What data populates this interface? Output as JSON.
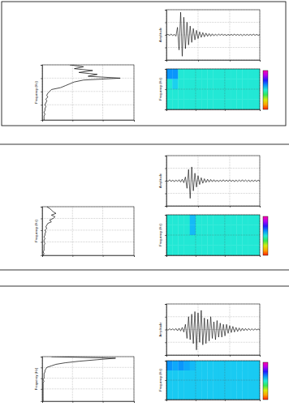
{
  "chart_data": [
    {
      "type": "line",
      "orientation": "horizontal",
      "xlabel": "Frequency (Hz)",
      "color": "#000000",
      "x": [
        0,
        1,
        2,
        3,
        4,
        5,
        6,
        7,
        8,
        9,
        10,
        11,
        12,
        13,
        14,
        15,
        16,
        17,
        18,
        19,
        20,
        21,
        22,
        23,
        24,
        25,
        26,
        27,
        28,
        29
      ],
      "values": [
        0.3,
        0.45,
        0.35,
        0.55,
        0.4,
        0.6,
        0.5,
        0.85,
        0.45,
        0.35,
        0.3,
        0.25,
        0.2,
        0.1,
        0.08,
        0.06,
        0.05,
        0.06,
        0.04,
        0.05,
        0.04,
        0.03,
        0.04,
        0.03,
        0.03,
        0.02,
        0.03,
        0.02,
        0.02,
        0.02
      ],
      "xlim": [
        0,
        29
      ],
      "xticks": [
        0,
        7,
        14,
        21
      ],
      "ylim": [
        0,
        1
      ],
      "yticks": [
        0,
        0.33,
        0.66,
        1
      ],
      "grid": true,
      "tick_labels": false
    },
    {
      "type": "line",
      "ylabel": "Amplitude",
      "color": "#000000",
      "values": [
        0.0,
        0.02,
        -0.02,
        0.03,
        -0.03,
        0.02,
        -0.05,
        0.3,
        -0.6,
        0.9,
        -0.85,
        0.7,
        -0.55,
        0.5,
        -0.4,
        0.35,
        -0.3,
        0.25,
        -0.2,
        0.18,
        -0.15,
        0.12,
        -0.1,
        0.09,
        -0.08,
        0.07,
        -0.06,
        0.05,
        -0.05,
        0.04,
        -0.04,
        0.03,
        -0.03,
        0.03,
        -0.02,
        0.03,
        -0.02,
        0.02,
        -0.03,
        0.02,
        -0.02,
        0.02,
        -0.02,
        0.03,
        -0.02,
        0.02,
        -0.02,
        0.02,
        -0.03,
        0.02,
        -0.02,
        0.02,
        -0.02,
        0.02,
        -0.02,
        0.03,
        -0.02,
        0.02,
        -0.02,
        0.01
      ],
      "xlim": [
        0,
        59
      ],
      "xticks": [
        0,
        20,
        40,
        59
      ],
      "ylim": [
        -1,
        1
      ],
      "yticks": [
        -1,
        -0.5,
        0,
        0.5,
        1
      ],
      "grid": true,
      "tick_labels": false
    },
    {
      "type": "heatmap",
      "ylabel": "Frequency (Hz)",
      "cells": [
        [
          0.62,
          0.62,
          0.5,
          0.5,
          0.5,
          0.5,
          0.5,
          0.5,
          0.5,
          0.5,
          0.5,
          0.5,
          0.5,
          0.5,
          0.5,
          0.5
        ],
        [
          0.5,
          0.55,
          0.5,
          0.5,
          0.5,
          0.5,
          0.5,
          0.5,
          0.5,
          0.5,
          0.5,
          0.5,
          0.5,
          0.5,
          0.5,
          0.5
        ],
        [
          0.5,
          0.5,
          0.5,
          0.5,
          0.5,
          0.5,
          0.5,
          0.5,
          0.5,
          0.5,
          0.5,
          0.5,
          0.5,
          0.5,
          0.5,
          0.5
        ],
        [
          0.5,
          0.5,
          0.5,
          0.5,
          0.5,
          0.5,
          0.5,
          0.5,
          0.5,
          0.5,
          0.5,
          0.5,
          0.5,
          0.5,
          0.5,
          0.5
        ]
      ],
      "zlim": [
        0,
        1
      ],
      "xlim": [
        0,
        16
      ],
      "xticks": [
        0,
        5,
        10,
        16
      ],
      "ylim": [
        0,
        4
      ],
      "yticks": [
        0,
        2,
        4
      ],
      "grid": true,
      "tick_labels": false
    },
    {
      "type": "line",
      "orientation": "horizontal",
      "xlabel": "Frequency (Hz)",
      "color": "#000000",
      "x": [
        0,
        1,
        2,
        3,
        4,
        5,
        6,
        7,
        8,
        9,
        10,
        11,
        12,
        13,
        14,
        15,
        16,
        17,
        18,
        19,
        20,
        21,
        22,
        23,
        24,
        25,
        26,
        27,
        28,
        29
      ],
      "values": [
        0.05,
        0.08,
        0.1,
        0.12,
        0.15,
        0.1,
        0.14,
        0.12,
        0.08,
        0.1,
        0.06,
        0.05,
        0.04,
        0.05,
        0.03,
        0.04,
        0.03,
        0.03,
        0.02,
        0.03,
        0.02,
        0.02,
        0.03,
        0.02,
        0.02,
        0.02,
        0.02,
        0.01,
        0.02,
        0.01
      ],
      "xlim": [
        0,
        29
      ],
      "xticks": [
        0,
        7,
        14,
        21
      ],
      "ylim": [
        0,
        1
      ],
      "yticks": [
        0,
        0.33,
        0.66,
        1
      ],
      "grid": true,
      "tick_labels": false
    },
    {
      "type": "line",
      "ylabel": "Amplitude",
      "color": "#000000",
      "values": [
        0.02,
        -0.03,
        0.04,
        -0.03,
        0.03,
        -0.04,
        0.03,
        -0.03,
        0.04,
        -0.05,
        0.06,
        -0.08,
        0.15,
        -0.3,
        0.45,
        -0.7,
        0.55,
        -0.4,
        0.3,
        -0.25,
        0.2,
        -0.15,
        0.12,
        -0.1,
        0.08,
        -0.07,
        0.06,
        -0.05,
        0.05,
        -0.04,
        0.04,
        -0.04,
        0.03,
        -0.04,
        0.03,
        -0.03,
        0.04,
        -0.03,
        0.03,
        -0.03,
        0.04,
        -0.03,
        0.03,
        -0.04,
        0.03,
        -0.03,
        0.03,
        -0.03,
        0.04,
        -0.03,
        0.03,
        -0.03,
        0.03,
        -0.04,
        0.03,
        -0.03,
        0.03,
        -0.03,
        0.03,
        -0.02
      ],
      "xlim": [
        0,
        59
      ],
      "xticks": [
        0,
        20,
        40,
        59
      ],
      "ylim": [
        -1,
        1
      ],
      "yticks": [
        -1,
        -0.5,
        0,
        0.5,
        1
      ],
      "grid": true,
      "tick_labels": false
    },
    {
      "type": "heatmap",
      "ylabel": "Frequency (Hz)",
      "cells": [
        [
          0.5,
          0.5,
          0.5,
          0.5,
          0.58,
          0.5,
          0.5,
          0.5,
          0.5,
          0.5,
          0.5,
          0.5,
          0.5,
          0.5,
          0.5,
          0.5
        ],
        [
          0.5,
          0.5,
          0.5,
          0.5,
          0.58,
          0.5,
          0.5,
          0.5,
          0.5,
          0.5,
          0.5,
          0.5,
          0.5,
          0.5,
          0.5,
          0.5
        ],
        [
          0.5,
          0.5,
          0.5,
          0.5,
          0.5,
          0.5,
          0.5,
          0.5,
          0.5,
          0.5,
          0.5,
          0.5,
          0.5,
          0.5,
          0.5,
          0.5
        ],
        [
          0.5,
          0.5,
          0.5,
          0.5,
          0.5,
          0.5,
          0.5,
          0.5,
          0.5,
          0.5,
          0.5,
          0.5,
          0.5,
          0.5,
          0.5,
          0.5
        ]
      ],
      "zlim": [
        0,
        1
      ],
      "xlim": [
        0,
        16
      ],
      "xticks": [
        0,
        5,
        10,
        16
      ],
      "ylim": [
        0,
        4
      ],
      "yticks": [
        0,
        2,
        4
      ],
      "grid": true,
      "tick_labels": false
    },
    {
      "type": "line",
      "orientation": "horizontal",
      "xlabel": "Frequency (Hz)",
      "color": "#000000",
      "x": [
        0,
        1,
        2,
        3,
        4,
        5,
        6,
        7,
        8,
        9,
        10,
        11,
        12,
        13,
        14,
        15,
        16,
        17,
        18,
        19,
        20,
        21,
        22,
        23,
        24,
        25,
        26,
        27,
        28,
        29
      ],
      "values": [
        0.1,
        0.8,
        0.6,
        0.4,
        0.25,
        0.15,
        0.1,
        0.05,
        0.04,
        0.03,
        0.03,
        0.02,
        0.02,
        0.02,
        0.02,
        0.01,
        0.02,
        0.01,
        0.01,
        0.01,
        0.01,
        0.01,
        0.01,
        0.01,
        0.01,
        0.01,
        0.01,
        0.01,
        0.01,
        0.01
      ],
      "xlim": [
        0,
        29
      ],
      "xticks": [
        0,
        7,
        14,
        21
      ],
      "ylim": [
        0,
        1
      ],
      "yticks": [
        0,
        0.33,
        0.66,
        1
      ],
      "grid": true,
      "tick_labels": false
    },
    {
      "type": "line",
      "ylabel": "Amplitude",
      "color": "#000000",
      "values": [
        0.02,
        -0.03,
        0.03,
        -0.02,
        0.03,
        -0.03,
        0.04,
        -0.05,
        0.05,
        -0.06,
        0.08,
        -0.1,
        0.2,
        -0.35,
        0.5,
        -0.4,
        0.6,
        -0.55,
        0.7,
        -0.8,
        0.65,
        -0.5,
        0.75,
        -0.6,
        0.45,
        -0.55,
        0.4,
        -0.45,
        0.5,
        -0.35,
        0.3,
        -0.4,
        0.35,
        -0.3,
        0.25,
        -0.3,
        0.2,
        -0.25,
        0.2,
        -0.15,
        0.15,
        -0.12,
        0.12,
        -0.1,
        0.08,
        -0.08,
        0.06,
        -0.06,
        0.05,
        -0.05,
        0.04,
        -0.04,
        0.04,
        -0.03,
        0.03,
        -0.03,
        0.03,
        -0.02,
        0.02,
        -0.02
      ],
      "xlim": [
        0,
        59
      ],
      "xticks": [
        0,
        20,
        40,
        59
      ],
      "ylim": [
        -1,
        1
      ],
      "yticks": [
        -1,
        -0.5,
        0,
        0.5,
        1
      ],
      "grid": true,
      "tick_labels": false
    },
    {
      "type": "heatmap",
      "ylabel": "Frequency (Hz)",
      "cells": [
        [
          0.62,
          0.6,
          0.62,
          0.6,
          0.58,
          0.56,
          0.56,
          0.56,
          0.56,
          0.56,
          0.56,
          0.56,
          0.56,
          0.56,
          0.56,
          0.56
        ],
        [
          0.56,
          0.56,
          0.56,
          0.56,
          0.56,
          0.56,
          0.56,
          0.56,
          0.56,
          0.56,
          0.56,
          0.56,
          0.56,
          0.56,
          0.56,
          0.56
        ],
        [
          0.56,
          0.56,
          0.56,
          0.56,
          0.56,
          0.56,
          0.56,
          0.56,
          0.56,
          0.56,
          0.56,
          0.56,
          0.56,
          0.56,
          0.56,
          0.56
        ],
        [
          0.56,
          0.56,
          0.56,
          0.56,
          0.56,
          0.56,
          0.56,
          0.56,
          0.56,
          0.56,
          0.56,
          0.56,
          0.56,
          0.56,
          0.56,
          0.56
        ]
      ],
      "zlim": [
        0,
        1
      ],
      "xlim": [
        0,
        16
      ],
      "xticks": [
        0,
        5,
        10,
        16
      ],
      "ylim": [
        0,
        4
      ],
      "yticks": [
        0,
        2,
        4
      ],
      "grid": true,
      "tick_labels": false
    }
  ]
}
